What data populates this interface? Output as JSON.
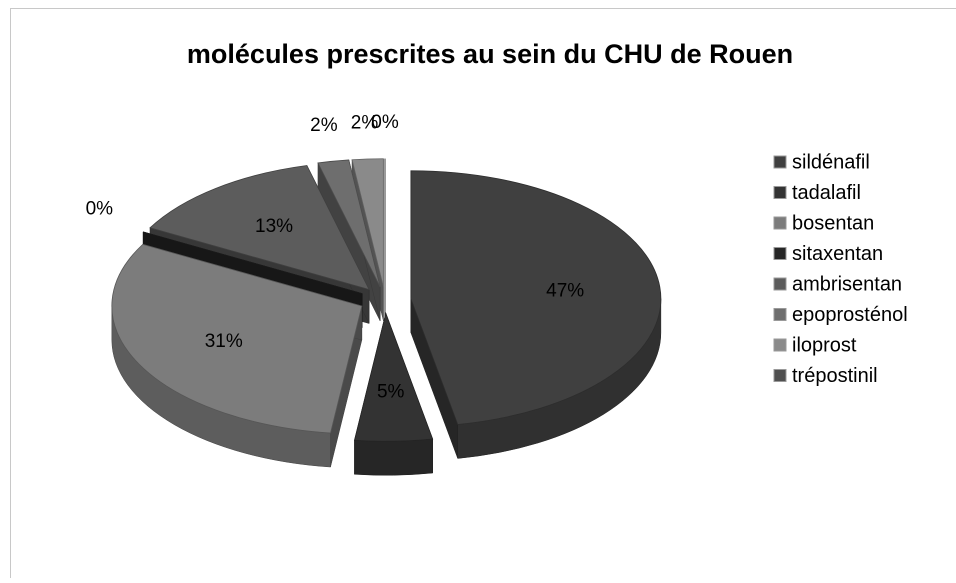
{
  "chart_data": {
    "type": "pie3d",
    "title": "molécules prescrites au sein du CHU de Rouen",
    "categories": [
      "sildénafil",
      "tadalafil",
      "bosentan",
      "sitaxentan",
      "ambrisentan",
      "epoprosténol",
      "iloprost",
      "trépostinil"
    ],
    "values": [
      47,
      5,
      31,
      0,
      13,
      2,
      2,
      0
    ],
    "value_labels": [
      "47%",
      "5%",
      "31%",
      "0%",
      "13%",
      "2%",
      "2%",
      "0%"
    ],
    "colors": [
      "#404040",
      "#333333",
      "#7c7c7c",
      "#262626",
      "#5c5c5c",
      "#6e6e6e",
      "#8a8a8a",
      "#505050"
    ],
    "legend": "right",
    "exploded": true
  }
}
